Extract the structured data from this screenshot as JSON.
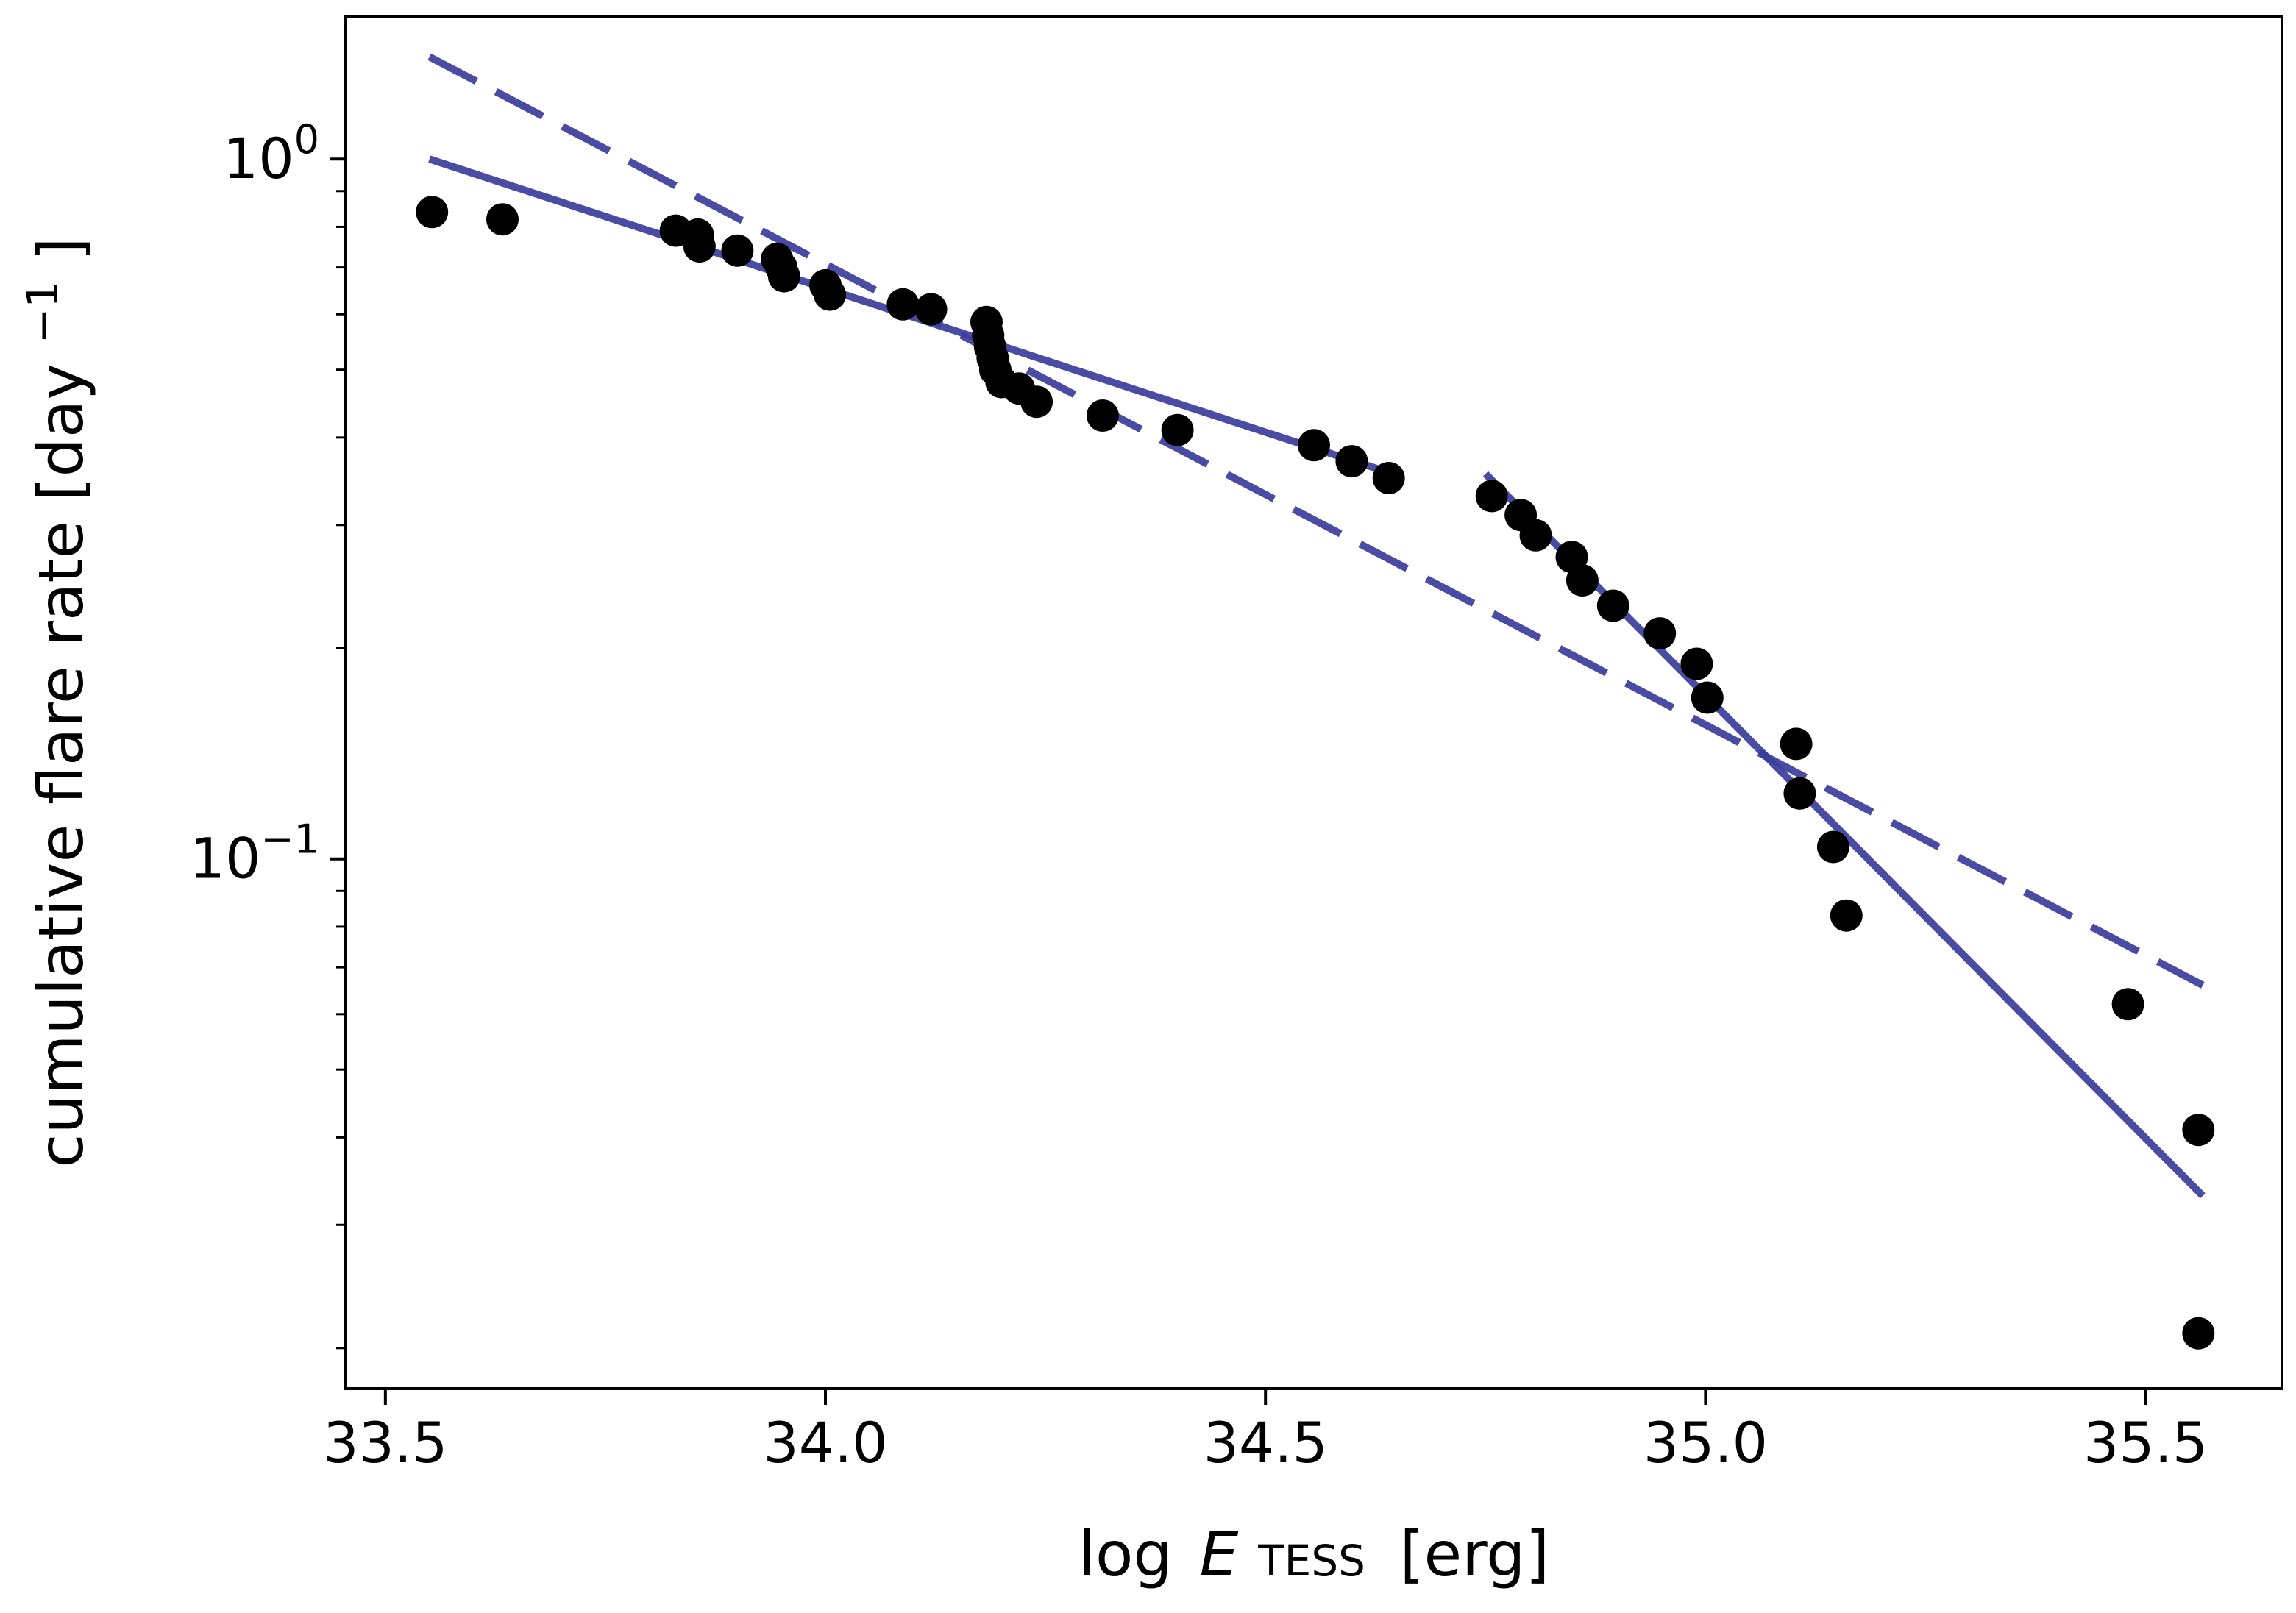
{
  "chart_data": {
    "type": "scatter",
    "title": "",
    "xlabel": {
      "prefix": "log",
      "symbol": "E",
      "subscript": "TESS",
      "unit": "[erg]"
    },
    "ylabel": {
      "text": "cumulative flare rate [day",
      "superscript": "−1",
      "suffix": "]"
    },
    "xlim": [
      33.455,
      35.655
    ],
    "ylim": [
      0.0175,
      1.6
    ],
    "yscale": "log",
    "grid": false,
    "x_ticks": [
      {
        "value": 33.5,
        "label": "33.5"
      },
      {
        "value": 34.0,
        "label": "34.0"
      },
      {
        "value": 34.5,
        "label": "34.5"
      },
      {
        "value": 35.0,
        "label": "35.0"
      },
      {
        "value": 35.5,
        "label": "35.5"
      }
    ],
    "y_major_ticks": [
      {
        "value": 1.0,
        "base": "10",
        "exp": "0"
      },
      {
        "value": 0.1,
        "base": "10",
        "exp": "−1"
      }
    ],
    "y_minor_ticks": [
      0.02,
      0.03,
      0.04,
      0.05,
      0.06,
      0.07,
      0.08,
      0.09,
      0.2,
      0.3,
      0.4,
      0.5,
      0.6,
      0.7,
      0.8,
      0.9
    ],
    "colors": {
      "points": "#000000",
      "fit_line": "#3a3d9a"
    },
    "series": [
      {
        "kind": "points",
        "x": [
          33.553,
          33.633,
          33.83,
          33.855,
          33.857,
          33.9,
          33.945,
          33.95,
          33.953,
          34.0,
          34.005,
          34.088,
          34.12,
          34.183,
          34.185,
          34.187,
          34.19,
          34.193,
          34.2,
          34.22,
          34.24,
          34.315,
          34.4,
          34.555,
          34.598,
          34.64,
          34.757,
          34.79,
          34.807,
          34.848,
          34.86,
          34.895,
          34.948,
          34.99,
          35.002,
          35.103,
          35.107,
          35.145,
          35.16,
          35.48,
          35.56,
          35.56
        ],
        "y": [
          0.84,
          0.82,
          0.79,
          0.78,
          0.75,
          0.74,
          0.72,
          0.7,
          0.68,
          0.66,
          0.64,
          0.62,
          0.61,
          0.585,
          0.56,
          0.54,
          0.52,
          0.5,
          0.48,
          0.47,
          0.45,
          0.43,
          0.41,
          0.39,
          0.37,
          0.35,
          0.33,
          0.31,
          0.29,
          0.27,
          0.25,
          0.23,
          0.21,
          0.19,
          0.17,
          0.146,
          0.124,
          0.104,
          0.083,
          0.062,
          0.041,
          0.021
        ]
      },
      {
        "kind": "line",
        "style": "solid",
        "x": [
          33.55,
          34.63
        ],
        "y": [
          1.0,
          0.36
        ]
      },
      {
        "kind": "line",
        "style": "solid",
        "x": [
          34.75,
          35.565
        ],
        "y": [
          0.355,
          0.033
        ]
      },
      {
        "kind": "line",
        "style": "dashed",
        "x": [
          33.55,
          35.565
        ],
        "y": [
          1.4,
          0.066
        ]
      }
    ]
  }
}
